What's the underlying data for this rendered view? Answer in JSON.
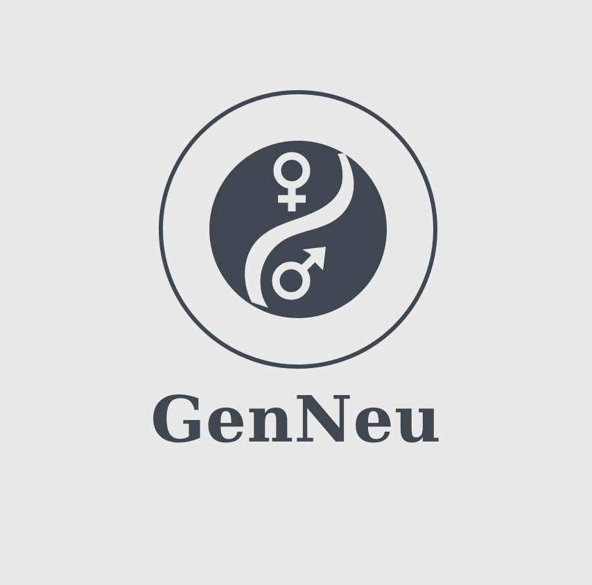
{
  "brand": {
    "name": "GenNeu"
  },
  "colors": {
    "background": "#e9e9e9",
    "ink": "#3f4751"
  },
  "icons": {
    "emblem": "yin-yang-gender-emblem-icon",
    "female": "female-symbol-icon",
    "male": "male-symbol-icon"
  }
}
